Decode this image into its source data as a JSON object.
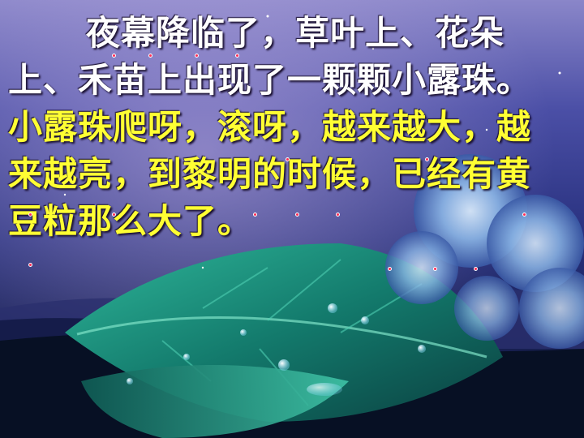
{
  "passage": {
    "white_text": "夜幕降临了，草叶上、花朵上、禾苗上出现了一颗颗小露珠。",
    "yellow_text": "小露珠爬呀，滚呀，越来越大，越来越亮，到黎明的时候，已经有黄豆粒那么大了。"
  },
  "colors": {
    "white_text": "#ffffff",
    "yellow_text": "#ffff33",
    "pronunciation_dot": "#ff2a55"
  }
}
